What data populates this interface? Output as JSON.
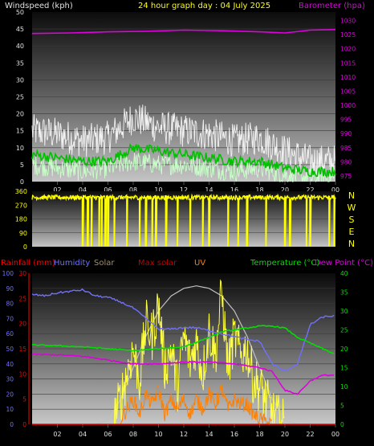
{
  "title": "24 hour graph day : 04 July 2025",
  "time_ticks": [
    "02",
    "04",
    "06",
    "08",
    "10",
    "12",
    "14",
    "16",
    "18",
    "20",
    "22",
    "00"
  ],
  "colors": {
    "gust": "#f2f2f2",
    "wind_avg": "#00c000",
    "wind_speed": "#c8ffc8",
    "barometer": "#e000e0",
    "direction": "#ffff00",
    "rainfall": "#ff0000",
    "humidity": "#7070ff",
    "solar": "#a09070",
    "max_solar": "#c0c0c0",
    "uv": "#ff8000",
    "temperature": "#00e000",
    "dew_point": "#e000e0"
  },
  "chart_data": [
    {
      "type": "line",
      "labels": {
        "left": "Windspeed (kph)",
        "right": "Barometer (hpa)"
      },
      "y_left": {
        "ticks": [
          "0",
          "5",
          "10",
          "15",
          "20",
          "25",
          "30",
          "35",
          "40",
          "45",
          "50"
        ],
        "range": [
          0,
          50
        ]
      },
      "y_right": {
        "ticks": [
          "975",
          "980",
          "985",
          "990",
          "995",
          "1000",
          "1005",
          "1010",
          "1015",
          "1020",
          "1025",
          "1030"
        ],
        "range": [
          973,
          1033
        ]
      },
      "x_range_hours": [
        0,
        24
      ],
      "barometer": {
        "x": [
          0,
          3,
          6,
          9,
          12,
          15,
          18,
          20,
          22,
          24
        ],
        "y": [
          1025.4,
          1025.6,
          1026.0,
          1026.2,
          1026.6,
          1026.4,
          1026.0,
          1025.6,
          1026.6,
          1026.8
        ]
      },
      "gust": {
        "x": [
          0,
          2,
          4,
          6,
          8,
          10,
          12,
          14,
          16,
          18,
          20,
          22,
          24
        ],
        "y": [
          15,
          14,
          12,
          13,
          19,
          16,
          15,
          14,
          12,
          13,
          9,
          6,
          6
        ]
      },
      "wind_avg": {
        "x": [
          0,
          2,
          4,
          6,
          8,
          10,
          12,
          14,
          16,
          18,
          20,
          22,
          24
        ],
        "y": [
          8,
          7,
          6,
          6,
          10,
          9,
          8,
          7,
          6,
          6,
          4,
          3,
          3
        ]
      },
      "wind_speed": {
        "x": [
          0,
          2,
          4,
          6,
          8,
          10,
          12,
          14,
          16,
          18,
          20,
          22,
          24
        ],
        "y": [
          5,
          4,
          3,
          4,
          6,
          5,
          5,
          4,
          3,
          4,
          2,
          1,
          1
        ]
      }
    },
    {
      "type": "line",
      "labels": {
        "right": [
          "N",
          "W",
          "S",
          "E",
          "N"
        ]
      },
      "y_left": {
        "ticks": [
          "360",
          "270",
          "180",
          "90",
          "0"
        ],
        "range": [
          0,
          360
        ]
      },
      "x_range_hours": [
        0,
        24
      ],
      "direction": {
        "baseline_deg": 320,
        "drops_hours": [
          4.0,
          4.4,
          4.7,
          5.3,
          5.5,
          5.8,
          6.0,
          6.5,
          7.5,
          8.5,
          9.0,
          9.5,
          9.8,
          10.6,
          11.5,
          12.5,
          13.5,
          14.0,
          15.5,
          16.3,
          17.0,
          18.5,
          20.0,
          20.4,
          21.7,
          22.0,
          23.5,
          23.9
        ]
      }
    },
    {
      "type": "line",
      "labels": {
        "rainfall": "Rainfall (mm)",
        "humidity": "Humidity",
        "solar": "Solar",
        "max_solar": "Max solar",
        "uv": "UV",
        "temperature": "Temperature (°C)",
        "dew_point": "Dew Point (°C)"
      },
      "y_left_humidity": {
        "ticks": [
          "0",
          "10",
          "20",
          "30",
          "40",
          "50",
          "60",
          "70",
          "80",
          "90",
          "100"
        ],
        "range": [
          0,
          100
        ]
      },
      "y_left_rain": {
        "ticks": [
          "0",
          "5",
          "10",
          "15",
          "20",
          "25",
          "30"
        ],
        "range": [
          0,
          30
        ]
      },
      "y_right_temp": {
        "ticks": [
          "0",
          "5",
          "10",
          "15",
          "20",
          "25",
          "30",
          "35",
          "40"
        ],
        "range": [
          0,
          40
        ]
      },
      "x_range_hours": [
        0,
        24
      ],
      "humidity": {
        "x": [
          0,
          1,
          2,
          3,
          4,
          5,
          6,
          7,
          8,
          9,
          10,
          11,
          12,
          13,
          14,
          15,
          16,
          17,
          18,
          19,
          20,
          21,
          22,
          23,
          24
        ],
        "y": [
          86,
          85,
          87,
          88,
          89,
          85,
          84,
          81,
          77,
          70,
          63,
          63,
          64,
          64,
          62,
          60,
          58,
          56,
          55,
          40,
          35,
          40,
          66,
          71,
          72
        ]
      },
      "temperature": {
        "x": [
          0,
          2,
          4,
          6,
          8,
          10,
          12,
          14,
          15,
          16,
          17,
          18,
          19,
          20,
          21,
          22,
          23,
          24
        ],
        "y": [
          21,
          20.8,
          20.5,
          20,
          19.5,
          20,
          20.5,
          23,
          24.5,
          25,
          25.5,
          26,
          26,
          25.5,
          23,
          21.5,
          20,
          18.5
        ]
      },
      "dew_point": {
        "x": [
          0,
          2,
          4,
          6,
          8,
          10,
          12,
          14,
          16,
          18,
          19,
          20,
          21,
          22,
          23,
          24
        ],
        "y": [
          18.5,
          18.4,
          18,
          17,
          16,
          16,
          16.5,
          16.5,
          16,
          15,
          14,
          9,
          8,
          11.5,
          13,
          13
        ]
      },
      "max_solar": {
        "x": [
          5,
          6,
          7,
          8,
          9,
          10,
          11,
          12,
          13,
          14,
          15,
          16,
          17,
          18,
          19,
          20,
          21
        ],
        "y": [
          0,
          3,
          20,
          45,
          70,
          90,
          102,
          108,
          110,
          108,
          102,
          90,
          70,
          45,
          20,
          3,
          0
        ],
        "scale_max": 120
      },
      "solar": {
        "x": [
          6.5,
          7,
          7.5,
          8,
          8.5,
          9,
          9.5,
          10,
          10.5,
          11,
          11.5,
          12,
          12.5,
          13,
          13.5,
          14,
          14.5,
          15,
          15.5,
          16,
          16.5,
          17,
          17.5,
          18,
          19,
          20
        ],
        "y": [
          5,
          20,
          40,
          60,
          35,
          80,
          70,
          95,
          45,
          60,
          30,
          70,
          50,
          65,
          40,
          75,
          55,
          105,
          45,
          70,
          55,
          60,
          35,
          30,
          8,
          0
        ],
        "scale_max": 120
      },
      "uv": {
        "x": [
          7,
          7.5,
          8,
          8.5,
          9,
          9.5,
          10,
          10.5,
          11,
          11.5,
          12,
          12.5,
          13,
          13.5,
          14,
          14.5,
          15,
          15.5,
          16,
          16.5,
          17,
          17.5,
          18,
          19
        ],
        "y": [
          1,
          3,
          5,
          2,
          6,
          4,
          7,
          2,
          5,
          3,
          5,
          2,
          5,
          3,
          6,
          4,
          7,
          3,
          5,
          4,
          4,
          2,
          1,
          0
        ],
        "scale_max": 30
      },
      "rainfall": {
        "x": [
          0,
          24
        ],
        "y": [
          0,
          0
        ]
      }
    }
  ]
}
